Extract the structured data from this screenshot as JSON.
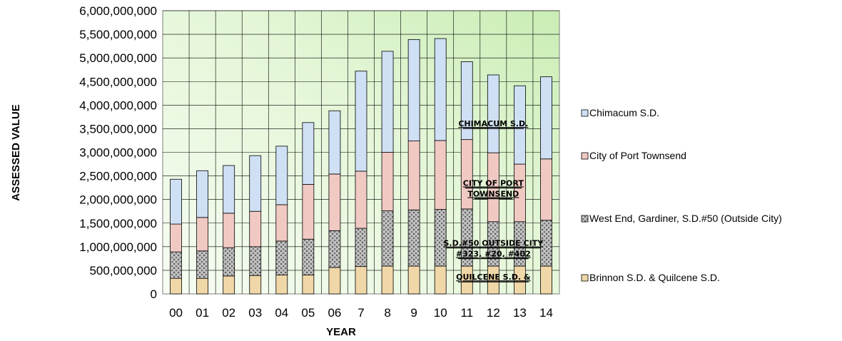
{
  "chart_data": {
    "type": "bar",
    "stacked": true,
    "categories": [
      "00",
      "01",
      "02",
      "03",
      "04",
      "05",
      "06",
      "7",
      "8",
      "9",
      "10",
      "11",
      "12",
      "13",
      "14"
    ],
    "series": [
      {
        "name": "Brinnon S.D. & Quilcene S.D.",
        "color": "#f0d7a8",
        "values": [
          330000000,
          330000000,
          380000000,
          390000000,
          400000000,
          400000000,
          560000000,
          580000000,
          590000000,
          590000000,
          590000000,
          590000000,
          590000000,
          590000000,
          590000000
        ]
      },
      {
        "name": "West End, Gardiner, S.D.#50 (Outside City)",
        "color": "#a9a9a9",
        "values": [
          560000000,
          580000000,
          600000000,
          610000000,
          720000000,
          760000000,
          780000000,
          810000000,
          1170000000,
          1190000000,
          1200000000,
          1210000000,
          940000000,
          940000000,
          970000000
        ]
      },
      {
        "name": "City of Port Townsend",
        "color": "#f1c9c3",
        "values": [
          590000000,
          710000000,
          730000000,
          750000000,
          770000000,
          1160000000,
          1200000000,
          1210000000,
          1240000000,
          1460000000,
          1460000000,
          1470000000,
          1460000000,
          1220000000,
          1300000000
        ]
      },
      {
        "name": "Chimacum S.D.",
        "color": "#cfe0f5",
        "values": [
          950000000,
          990000000,
          1010000000,
          1180000000,
          1240000000,
          1310000000,
          1340000000,
          2120000000,
          2140000000,
          2150000000,
          2160000000,
          1650000000,
          1650000000,
          1660000000,
          1740000000
        ]
      }
    ],
    "xlabel": "YEAR",
    "ylabel": "ASSESSED VALUE",
    "ylim": [
      0,
      6000000000
    ],
    "ytick_labels": [
      "0",
      "500,000,000",
      "1,000,000,000",
      "1,500,000,000",
      "2,000,000,000",
      "2,500,000,000",
      "3,000,000,000",
      "3,500,000,000",
      "4,000,000,000",
      "4,500,000,000",
      "5,000,000,000",
      "5,500,000,000",
      "6,000,000,000"
    ],
    "grid": true,
    "legend_position": "right",
    "legend_order": [
      "Chimacum S.D.",
      "City of Port Townsend",
      "West End, Gardiner, S.D.#50 (Outside City)",
      "Brinnon S.D. & Quilcene S.D."
    ],
    "annotations": [
      {
        "lines": [
          "CHIMACUM S.D."
        ],
        "x": "12",
        "y": 3550000000
      },
      {
        "lines": [
          "CITY OF PORT",
          "TOWNSEND"
        ],
        "x": "12",
        "y": 2290000000
      },
      {
        "lines": [
          "S.D.#50 OUTSIDE CITY",
          "#323, #20, #402"
        ],
        "x": "12",
        "y": 1020000000
      },
      {
        "lines": [
          "QUILCENE S.D. &"
        ],
        "x": "12",
        "y": 300000000
      }
    ]
  }
}
